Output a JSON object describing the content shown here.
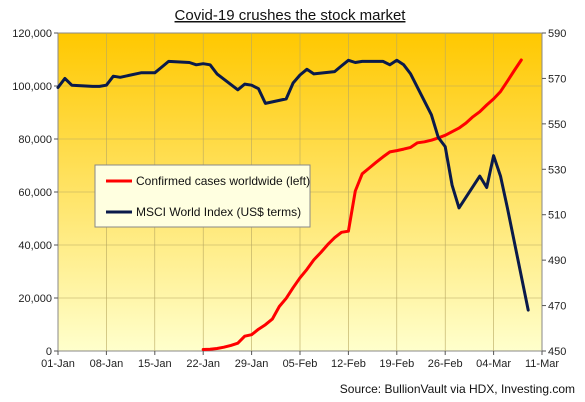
{
  "chart_data": {
    "type": "line",
    "title": "Covid-19 crushes the stock market",
    "source": "Source: BullionVault via HDX, Investing.com",
    "x_ticks": [
      "01-Jan",
      "08-Jan",
      "15-Jan",
      "22-Jan",
      "29-Jan",
      "05-Feb",
      "12-Feb",
      "19-Feb",
      "26-Feb",
      "04-Mar",
      "11-Mar"
    ],
    "x_range": [
      "2020-01-01",
      "2020-03-11"
    ],
    "y_left": {
      "lim": [
        0,
        120000
      ],
      "ticks": [
        "0",
        "20,000",
        "40,000",
        "60,000",
        "80,000",
        "100,000",
        "120,000"
      ]
    },
    "y_right": {
      "lim": [
        450,
        590
      ],
      "ticks": [
        "450",
        "470",
        "490",
        "510",
        "530",
        "550",
        "570",
        "590"
      ]
    },
    "grid": true,
    "legend_position": "center-left",
    "series": [
      {
        "name": "Confirmed cases worldwide (left)",
        "axis": "left",
        "color": "#ff0000",
        "points": [
          [
            "2020-01-22",
            555
          ],
          [
            "2020-01-23",
            654
          ],
          [
            "2020-01-24",
            941
          ],
          [
            "2020-01-25",
            1434
          ],
          [
            "2020-01-26",
            2118
          ],
          [
            "2020-01-27",
            2927
          ],
          [
            "2020-01-28",
            5578
          ],
          [
            "2020-01-29",
            6166
          ],
          [
            "2020-01-30",
            8234
          ],
          [
            "2020-01-31",
            9927
          ],
          [
            "2020-02-01",
            12038
          ],
          [
            "2020-02-02",
            16787
          ],
          [
            "2020-02-03",
            19881
          ],
          [
            "2020-02-04",
            23892
          ],
          [
            "2020-02-05",
            27635
          ],
          [
            "2020-02-06",
            30794
          ],
          [
            "2020-02-07",
            34391
          ],
          [
            "2020-02-08",
            37120
          ],
          [
            "2020-02-09",
            40150
          ],
          [
            "2020-02-10",
            42762
          ],
          [
            "2020-02-11",
            44802
          ],
          [
            "2020-02-12",
            45221
          ],
          [
            "2020-02-13",
            60368
          ],
          [
            "2020-02-14",
            66885
          ],
          [
            "2020-02-15",
            69030
          ],
          [
            "2020-02-16",
            71224
          ],
          [
            "2020-02-17",
            73258
          ],
          [
            "2020-02-18",
            75136
          ],
          [
            "2020-02-19",
            75639
          ],
          [
            "2020-02-20",
            76197
          ],
          [
            "2020-02-21",
            76819
          ],
          [
            "2020-02-22",
            78572
          ],
          [
            "2020-02-23",
            78958
          ],
          [
            "2020-02-24",
            79561
          ],
          [
            "2020-02-25",
            80406
          ],
          [
            "2020-02-26",
            81388
          ],
          [
            "2020-02-27",
            82746
          ],
          [
            "2020-02-28",
            84112
          ],
          [
            "2020-02-29",
            86011
          ],
          [
            "2020-03-01",
            88369
          ],
          [
            "2020-03-02",
            90306
          ],
          [
            "2020-03-03",
            92840
          ],
          [
            "2020-03-04",
            95120
          ],
          [
            "2020-03-05",
            97886
          ],
          [
            "2020-03-06",
            101801
          ],
          [
            "2020-03-07",
            105847
          ],
          [
            "2020-03-08",
            109821
          ]
        ]
      },
      {
        "name": "MSCI World Index (US$ terms)",
        "axis": "right",
        "color": "#0a1a4a",
        "points": [
          [
            "2020-01-01",
            566
          ],
          [
            "2020-01-02",
            570
          ],
          [
            "2020-01-03",
            567
          ],
          [
            "2020-01-06",
            566.5
          ],
          [
            "2020-01-07",
            566.5
          ],
          [
            "2020-01-08",
            567
          ],
          [
            "2020-01-09",
            571
          ],
          [
            "2020-01-10",
            570.5
          ],
          [
            "2020-01-13",
            572.5
          ],
          [
            "2020-01-14",
            572.5
          ],
          [
            "2020-01-15",
            572.5
          ],
          [
            "2020-01-16",
            575
          ],
          [
            "2020-01-17",
            577.5
          ],
          [
            "2020-01-20",
            577
          ],
          [
            "2020-01-21",
            576
          ],
          [
            "2020-01-22",
            576.5
          ],
          [
            "2020-01-23",
            576
          ],
          [
            "2020-01-24",
            572
          ],
          [
            "2020-01-27",
            565
          ],
          [
            "2020-01-28",
            567.5
          ],
          [
            "2020-01-29",
            567
          ],
          [
            "2020-01-30",
            565.5
          ],
          [
            "2020-01-31",
            559
          ],
          [
            "2020-02-03",
            561
          ],
          [
            "2020-02-04",
            568
          ],
          [
            "2020-02-05",
            571.5
          ],
          [
            "2020-02-06",
            574
          ],
          [
            "2020-02-07",
            572
          ],
          [
            "2020-02-10",
            573
          ],
          [
            "2020-02-11",
            575.5
          ],
          [
            "2020-02-12",
            578
          ],
          [
            "2020-02-13",
            577
          ],
          [
            "2020-02-14",
            577.5
          ],
          [
            "2020-02-17",
            577.5
          ],
          [
            "2020-02-18",
            576
          ],
          [
            "2020-02-19",
            578
          ],
          [
            "2020-02-20",
            576
          ],
          [
            "2020-02-21",
            572
          ],
          [
            "2020-02-24",
            554
          ],
          [
            "2020-02-25",
            544
          ],
          [
            "2020-02-26",
            540
          ],
          [
            "2020-02-27",
            523
          ],
          [
            "2020-02-28",
            513
          ],
          [
            "2020-03-02",
            527
          ],
          [
            "2020-03-03",
            522
          ],
          [
            "2020-03-04",
            536
          ],
          [
            "2020-03-05",
            527
          ],
          [
            "2020-03-06",
            513
          ],
          [
            "2020-03-09",
            468
          ]
        ]
      }
    ]
  }
}
